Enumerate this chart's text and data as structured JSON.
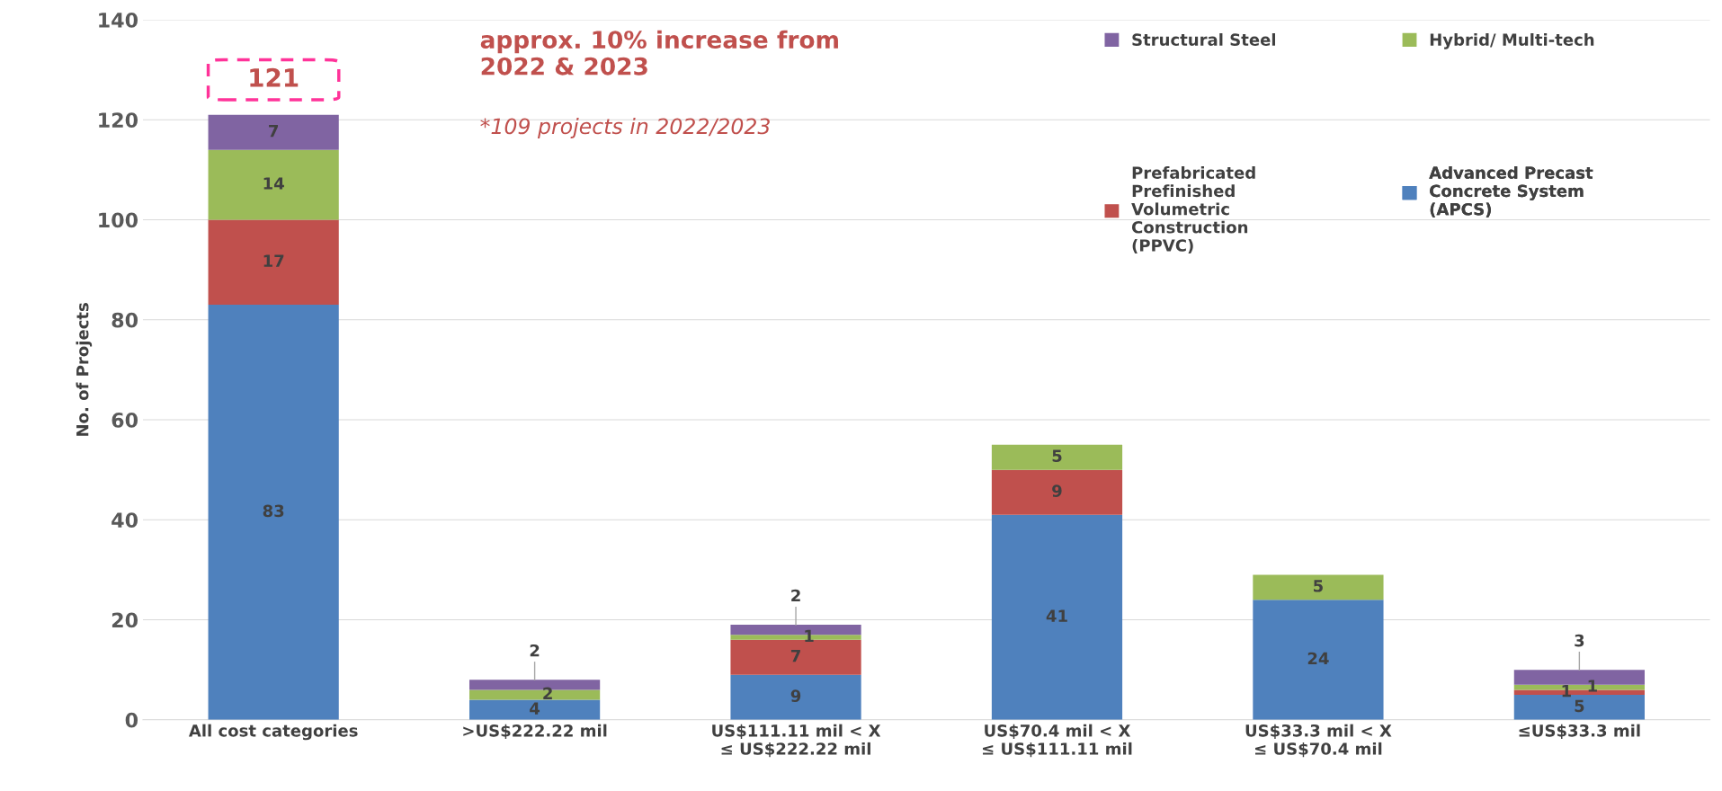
{
  "chart_data": {
    "type": "bar",
    "stacked": true,
    "ylabel": "No. of Projects",
    "categories": [
      "All cost categories",
      ">US$222.22 mil",
      "US$111.11 mil < X\n≤ US$222.22 mil",
      "US$70.4 mil < X\n≤ US$111.11 mil",
      "US$33.3 mil < X\n≤ US$70.4 mil",
      "≤US$33.3 mil"
    ],
    "series": [
      {
        "name": "Advanced Precast\nConcrete System\n(APCS)",
        "color": "#4f81bd",
        "values": [
          83,
          4,
          9,
          41,
          24,
          5
        ],
        "value_labels": [
          "83",
          "4",
          "9",
          "41",
          "24",
          "5"
        ]
      },
      {
        "name": "Prefabricated\nPrefinished\nVolumetric\nConstruction\n(PPVC)",
        "color": "#c0504d",
        "values": [
          17,
          0,
          7,
          9,
          0,
          1
        ],
        "value_labels": [
          "17",
          null,
          "7",
          "9",
          null,
          "1"
        ]
      },
      {
        "name": "Hybrid/ Multi-tech",
        "color": "#9bbb59",
        "values": [
          14,
          2,
          1,
          5,
          5,
          1
        ],
        "value_labels": [
          "14",
          "2",
          "1",
          "5",
          "5",
          "1"
        ]
      },
      {
        "name": "Structural Steel",
        "color": "#8064a2",
        "values": [
          7,
          2,
          2,
          0,
          0,
          3
        ],
        "value_labels": [
          "7",
          "2",
          "2",
          null,
          null,
          "3"
        ]
      }
    ],
    "totals": [
      "121",
      null,
      null,
      null,
      null,
      null
    ],
    "annotations": [
      "approx. 10% increase from\n2022 & 2023",
      "*109 projects in 2022/2023"
    ],
    "ylim": [
      0,
      140
    ],
    "yticks": [
      0,
      20,
      40,
      60,
      80,
      100,
      120,
      140
    ],
    "grid": "y",
    "legend": "top right"
  }
}
